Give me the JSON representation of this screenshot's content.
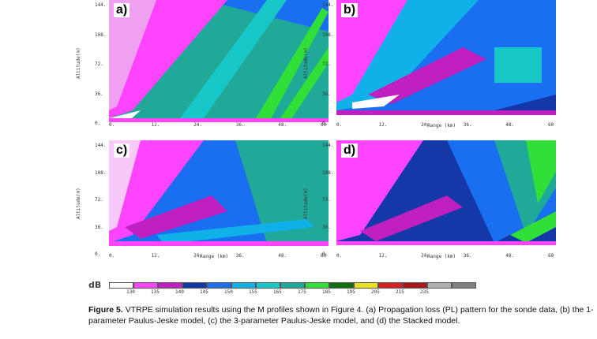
{
  "panels": [
    {
      "label": "a)",
      "show_xlabel": false
    },
    {
      "label": "b)",
      "show_xlabel": true
    },
    {
      "label": "c)",
      "show_xlabel": true
    },
    {
      "label": "d)",
      "show_xlabel": true
    }
  ],
  "axes": {
    "ylabel": "Altitude(m)",
    "xlabel": "Range (km)",
    "y_ticks": [
      "144.",
      "108.",
      "72.",
      "36.",
      "0."
    ],
    "x_ticks": [
      "0.",
      "12.",
      "24.",
      "36.",
      "48.",
      "60"
    ]
  },
  "legend": {
    "unit": "dB",
    "ticks": [
      "130",
      "135",
      "140",
      "145",
      "150",
      "155",
      "165",
      "175",
      "185",
      "195",
      "205",
      "215",
      "235"
    ],
    "colors": [
      "#ffffff",
      "#ff44ff",
      "#c020c0",
      "#1438a8",
      "#1a6ef0",
      "#10b0e8",
      "#18c8c8",
      "#20a898",
      "#30e038",
      "#107010",
      "#e8e020",
      "#d82020",
      "#a81818",
      "#b0b0b0",
      "#808080"
    ]
  },
  "caption": {
    "figure_label": "Figure 5.",
    "text": "VTRPE simulation results using the M profiles shown in Figure 4. (a) Propagation loss (PL) pattern for the sonde data, (b) the 1-parameter Paulus-Jeske model, (c) the 3-parameter Paulus-Jeske model, and (d) the Stacked model."
  }
}
